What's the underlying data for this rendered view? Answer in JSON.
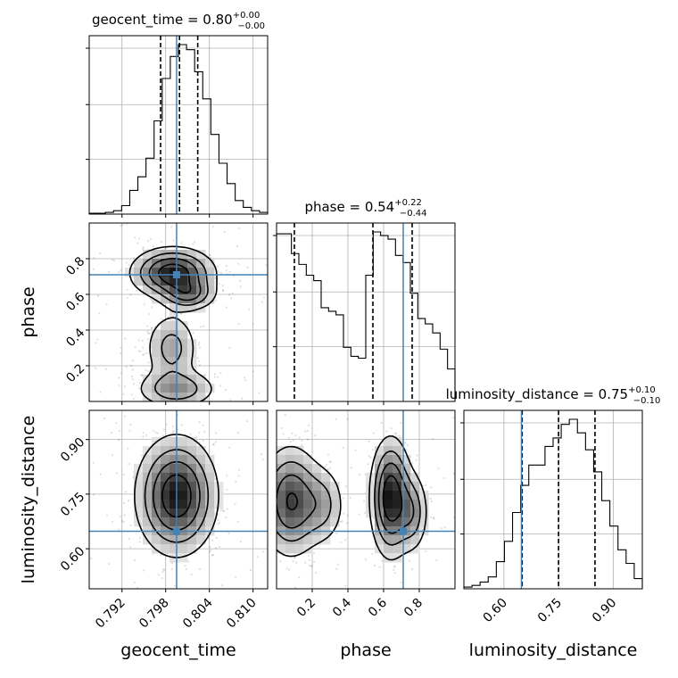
{
  "chart_data": {
    "type": "corner",
    "parameters": [
      {
        "key": "geocent_time",
        "label": "geocent_time",
        "title_prefix": "geocent_time = 0.80",
        "title_upper": "+0.00",
        "title_lower": "−0.00",
        "range": [
          0.7875,
          0.812
        ],
        "ticks": [
          0.792,
          0.798,
          0.804,
          0.81
        ],
        "tick_labels": [
          "0.792",
          "0.798",
          "0.804",
          "0.810"
        ],
        "truth": 0.7995,
        "quantiles": [
          0.7973,
          0.7999,
          0.8024
        ],
        "hist": [
          0.005,
          0.005,
          0.01,
          0.02,
          0.05,
          0.14,
          0.22,
          0.33,
          0.55,
          0.8,
          0.93,
          1.0,
          0.97,
          0.84,
          0.68,
          0.47,
          0.3,
          0.18,
          0.08,
          0.04,
          0.02,
          0.01
        ]
      },
      {
        "key": "phase",
        "label": "phase",
        "title_prefix": "phase = 0.54",
        "title_upper": "+0.22",
        "title_lower": "−0.44",
        "range": [
          0.0,
          1.0
        ],
        "ticks": [
          0.2,
          0.4,
          0.6,
          0.8
        ],
        "tick_labels": [
          "0.2",
          "0.4",
          "0.6",
          "0.8"
        ],
        "truth": 0.71,
        "quantiles": [
          0.1,
          0.54,
          0.76
        ],
        "hist": [
          0.93,
          0.93,
          0.82,
          0.76,
          0.7,
          0.67,
          0.52,
          0.5,
          0.48,
          0.3,
          0.25,
          0.24,
          0.7,
          0.94,
          0.92,
          0.9,
          0.81,
          0.77,
          0.6,
          0.46,
          0.43,
          0.38,
          0.29,
          0.18
        ]
      },
      {
        "key": "luminosity_distance",
        "label": "luminosity_distance",
        "title_prefix": "luminosity_distance = 0.75",
        "title_upper": "+0.10",
        "title_lower": "−0.10",
        "range": [
          0.49,
          0.98
        ],
        "ticks": [
          0.6,
          0.75,
          0.9
        ],
        "tick_labels": [
          "0.60",
          "0.75",
          "0.90"
        ],
        "truth": 0.648,
        "quantiles": [
          0.65,
          0.75,
          0.85
        ],
        "hist": [
          0.01,
          0.02,
          0.04,
          0.07,
          0.16,
          0.28,
          0.45,
          0.61,
          0.73,
          0.73,
          0.84,
          0.89,
          0.97,
          1.0,
          0.92,
          0.82,
          0.69,
          0.52,
          0.37,
          0.23,
          0.15,
          0.06
        ]
      }
    ],
    "truth_color": "#4682b4",
    "grid": true,
    "pairs": [
      {
        "x": "geocent_time",
        "y": "phase",
        "blobs": [
          {
            "cx": 0.799,
            "cy": 0.72,
            "sx": 0.003,
            "sy": 0.075,
            "w": 1.0
          },
          {
            "cx": 0.8012,
            "cy": 0.6,
            "sx": 0.002,
            "sy": 0.05,
            "w": 0.55
          },
          {
            "cx": 0.7988,
            "cy": 0.3,
            "sx": 0.002,
            "sy": 0.11,
            "w": 0.42
          },
          {
            "cx": 0.7995,
            "cy": 0.07,
            "sx": 0.003,
            "sy": 0.06,
            "w": 0.5
          }
        ]
      },
      {
        "x": "geocent_time",
        "y": "luminosity_distance",
        "blobs": [
          {
            "cx": 0.7995,
            "cy": 0.745,
            "sx": 0.0029,
            "sy": 0.085,
            "w": 1.0
          }
        ]
      },
      {
        "x": "phase",
        "y": "luminosity_distance",
        "blobs": [
          {
            "cx": 0.08,
            "cy": 0.73,
            "sx": 0.09,
            "sy": 0.08,
            "w": 0.8
          },
          {
            "cx": 0.26,
            "cy": 0.72,
            "sx": 0.07,
            "sy": 0.06,
            "w": 0.35
          },
          {
            "cx": 0.64,
            "cy": 0.74,
            "sx": 0.06,
            "sy": 0.085,
            "w": 1.0
          },
          {
            "cx": 0.76,
            "cy": 0.7,
            "sx": 0.05,
            "sy": 0.06,
            "w": 0.45
          }
        ]
      }
    ]
  }
}
